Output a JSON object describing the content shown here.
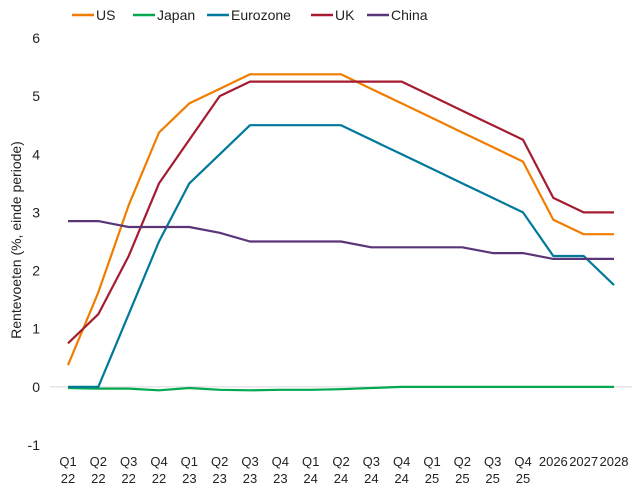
{
  "chart_data": {
    "type": "line",
    "title": "",
    "xlabel": "",
    "ylabel": "Rentevoeten (%, einde periode)",
    "ylim": [
      -1,
      6
    ],
    "yticks": [
      -1,
      0,
      1,
      2,
      3,
      4,
      5,
      6
    ],
    "legend_position": "top",
    "categories": [
      [
        "Q1",
        "22"
      ],
      [
        "Q2",
        "22"
      ],
      [
        "Q3",
        "22"
      ],
      [
        "Q4",
        "22"
      ],
      [
        "Q1",
        "23"
      ],
      [
        "Q2",
        "23"
      ],
      [
        "Q3",
        "23"
      ],
      [
        "Q4",
        "23"
      ],
      [
        "Q1",
        "24"
      ],
      [
        "Q2",
        "24"
      ],
      [
        "Q3",
        "24"
      ],
      [
        "Q4",
        "24"
      ],
      [
        "Q1",
        "25"
      ],
      [
        "Q2",
        "25"
      ],
      [
        "Q3",
        "25"
      ],
      [
        "Q4",
        "25"
      ],
      [
        "2026",
        ""
      ],
      [
        "2027",
        ""
      ],
      [
        "2028",
        ""
      ]
    ],
    "series": [
      {
        "name": "US",
        "color": "#f07d00",
        "values": [
          0.375,
          1.625,
          3.125,
          4.375,
          4.875,
          5.125,
          5.375,
          5.375,
          5.375,
          5.375,
          5.125,
          4.875,
          4.625,
          4.375,
          4.125,
          3.875,
          2.875,
          2.625,
          2.625
        ]
      },
      {
        "name": "Japan",
        "color": "#00a850",
        "values": [
          -0.02,
          -0.03,
          -0.03,
          -0.06,
          -0.02,
          -0.05,
          -0.06,
          -0.05,
          -0.05,
          -0.04,
          -0.02,
          0,
          0,
          0,
          0,
          0,
          0,
          0,
          0
        ]
      },
      {
        "name": "Eurozone",
        "color": "#00799a",
        "values": [
          0,
          0,
          1.25,
          2.5,
          3.5,
          4.0,
          4.5,
          4.5,
          4.5,
          4.5,
          4.25,
          4.0,
          3.75,
          3.5,
          3.25,
          3.0,
          2.25,
          2.25,
          1.75
        ]
      },
      {
        "name": "UK",
        "color": "#a51c30",
        "values": [
          0.75,
          1.25,
          2.25,
          3.5,
          4.25,
          5.0,
          5.25,
          5.25,
          5.25,
          5.25,
          5.25,
          5.25,
          5.0,
          4.75,
          4.5,
          4.25,
          3.25,
          3.0,
          3.0
        ]
      },
      {
        "name": "China",
        "color": "#5a3578",
        "values": [
          2.85,
          2.85,
          2.75,
          2.75,
          2.75,
          2.65,
          2.5,
          2.5,
          2.5,
          2.5,
          2.4,
          2.4,
          2.4,
          2.4,
          2.3,
          2.3,
          2.2,
          2.2,
          2.2
        ]
      }
    ]
  }
}
